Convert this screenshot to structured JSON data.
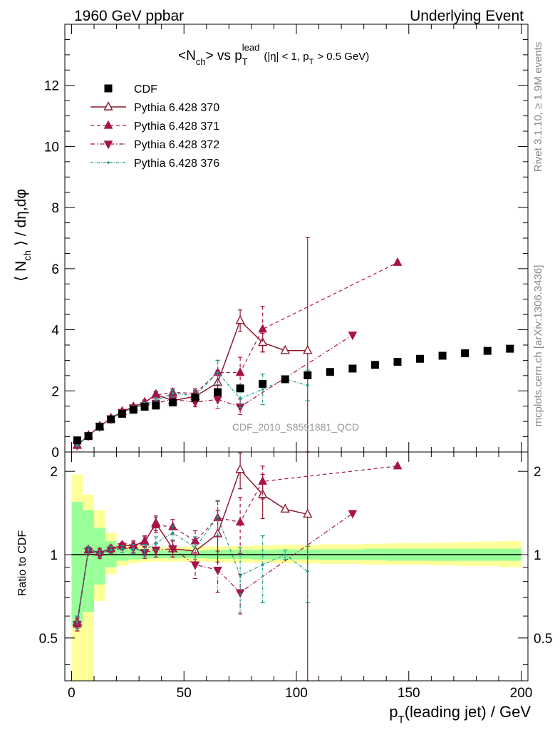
{
  "header": {
    "left": "1960 GeV ppbar",
    "right": "Underlying Event"
  },
  "side_labels": {
    "rivet": "Rivet 3.1.10, ≥ 1.9M events",
    "mcplots": "mcplots.cern.ch [arXiv:1306.3436]"
  },
  "watermark": "CDF_2010_S8591881_QCD",
  "chart_data": [
    {
      "type": "scatter",
      "panel": "main",
      "title": "<N_ch> vs p_T^lead (|η| < 1, p_T > 0.5 GeV)",
      "title_parts": {
        "a": "<N",
        "a_sub": "ch",
        "b": "> vs p",
        "b_sub": "T",
        "b_sup": "lead",
        "c": "(|η| < 1, p",
        "c_sub": "T",
        "d": "> 0.5 GeV)"
      },
      "ylabel": "⟨ N_ch ⟩ / dη,dφ",
      "ylabel_parts": {
        "a": "⟨ N",
        "sub": "ch",
        "b": " ⟩ / dη,dφ"
      },
      "xlim": [
        -3,
        203
      ],
      "ylim": [
        0,
        14
      ],
      "yticks": [
        0,
        2,
        4,
        6,
        8,
        10,
        12
      ],
      "ytick_labels": [
        "0",
        "2",
        "4",
        "6",
        "8",
        "10",
        "12"
      ],
      "legend_position": "top-left",
      "series": [
        {
          "name": "CDF",
          "color": "#000000",
          "marker": "square",
          "x": [
            2.5,
            7.5,
            12.5,
            17.5,
            22.5,
            27.5,
            32.5,
            37.5,
            45,
            55,
            65,
            75,
            85,
            95,
            105,
            115,
            125,
            135,
            145,
            155,
            165,
            175,
            185,
            195
          ],
          "y": [
            0.38,
            0.52,
            0.83,
            1.07,
            1.25,
            1.38,
            1.48,
            1.52,
            1.62,
            1.78,
            1.96,
            2.08,
            2.23,
            2.38,
            2.51,
            2.62,
            2.73,
            2.85,
            2.95,
            3.05,
            3.15,
            3.23,
            3.31,
            3.38
          ]
        },
        {
          "name": "Pythia 6.428 370",
          "color": "#8b1a2e",
          "marker": "triangle-up-open",
          "dash": "",
          "x": [
            2.5,
            7.5,
            12.5,
            17.5,
            22.5,
            27.5,
            32.5,
            37.5,
            45,
            55,
            65,
            75,
            85,
            95,
            105
          ],
          "y": [
            0.22,
            0.54,
            0.84,
            1.1,
            1.32,
            1.47,
            1.62,
            1.88,
            1.68,
            1.82,
            2.27,
            4.3,
            3.58,
            3.32,
            3.32
          ],
          "err": [
            0.04,
            0.03,
            0.04,
            0.05,
            0.05,
            0.06,
            0.08,
            0.1,
            0.1,
            0.2,
            0.4,
            0.35,
            0.3,
            0.0,
            3.7
          ]
        },
        {
          "name": "Pythia 6.428 371",
          "color": "#a8124a",
          "marker": "triangle-up",
          "dash": "5,4",
          "x": [
            2.5,
            7.5,
            12.5,
            17.5,
            22.5,
            27.5,
            32.5,
            37.5,
            45,
            55,
            65,
            75,
            85,
            145
          ],
          "y": [
            0.21,
            0.54,
            0.84,
            1.1,
            1.33,
            1.48,
            1.62,
            1.86,
            1.95,
            1.92,
            2.6,
            2.6,
            4.02,
            6.2
          ],
          "err": [
            0.04,
            0.03,
            0.04,
            0.05,
            0.05,
            0.06,
            0.08,
            0.1,
            0.12,
            0.15,
            0.4,
            0.5,
            0.75,
            0.0
          ]
        },
        {
          "name": "Pythia 6.428 372",
          "color": "#a8124a",
          "marker": "triangle-down",
          "dash": "6,3,1.5,3",
          "x": [
            2.5,
            7.5,
            12.5,
            17.5,
            22.5,
            27.5,
            32.5,
            37.5,
            45,
            55,
            65,
            75,
            125
          ],
          "y": [
            0.22,
            0.53,
            0.83,
            1.08,
            1.3,
            1.45,
            1.52,
            1.6,
            1.72,
            1.63,
            1.72,
            1.48,
            3.83
          ],
          "err": [
            0.04,
            0.03,
            0.04,
            0.05,
            0.05,
            0.06,
            0.08,
            0.1,
            0.12,
            0.15,
            0.3,
            0.25,
            0.0
          ]
        },
        {
          "name": "Pythia 6.428 376",
          "color": "#1a9a8a",
          "marker": "dot",
          "dash": "4,2,1,2",
          "x": [
            2.5,
            7.5,
            12.5,
            17.5,
            22.5,
            27.5,
            32.5,
            37.5,
            45,
            55,
            65,
            75,
            85,
            95,
            105
          ],
          "y": [
            0.22,
            0.54,
            0.84,
            1.1,
            1.3,
            1.45,
            1.55,
            1.68,
            1.92,
            1.85,
            2.6,
            1.75,
            2.05,
            2.38,
            2.18
          ],
          "err": [
            0.04,
            0.03,
            0.04,
            0.05,
            0.05,
            0.06,
            0.08,
            0.1,
            0.12,
            0.15,
            0.4,
            0.3,
            0.5,
            0.05,
            0.5
          ]
        }
      ]
    },
    {
      "type": "scatter",
      "panel": "ratio",
      "ylabel": "Ratio to CDF",
      "xlabel": "p_T(leading jet) / GeV",
      "xlabel_parts": {
        "a": "p",
        "sub": "T",
        "b": "(leading jet) / GeV"
      },
      "xlim": [
        -3,
        203
      ],
      "ylim": [
        0.35,
        2.35
      ],
      "ylog": true,
      "xticks": [
        0,
        50,
        100,
        150,
        200
      ],
      "xtick_labels": [
        "0",
        "50",
        "100",
        "150",
        "200"
      ],
      "yticks": [
        0.5,
        1,
        2
      ],
      "ytick_labels": [
        "0.5",
        "1",
        "2"
      ],
      "reference_line": 1,
      "bands": {
        "edges": [
          0,
          5,
          10,
          15,
          20,
          25,
          30,
          35,
          40,
          50,
          60,
          70,
          80,
          90,
          100,
          110,
          120,
          130,
          140,
          150,
          160,
          170,
          180,
          190,
          200
        ],
        "inner": {
          "color": "#99ff99",
          "lo": [
            0.55,
            0.62,
            0.78,
            0.9,
            0.95,
            0.96,
            0.965,
            0.97,
            0.97,
            0.97,
            0.965,
            0.965,
            0.96,
            0.96,
            0.96,
            0.955,
            0.955,
            0.955,
            0.95,
            0.95,
            0.95,
            0.95,
            0.95,
            0.95
          ],
          "hi": [
            1.55,
            1.45,
            1.25,
            1.12,
            1.06,
            1.045,
            1.04,
            1.035,
            1.035,
            1.035,
            1.04,
            1.04,
            1.04,
            1.045,
            1.045,
            1.045,
            1.045,
            1.05,
            1.05,
            1.05,
            1.05,
            1.05,
            1.05,
            1.05
          ]
        },
        "outer": {
          "color": "#ffff99",
          "lo": [
            0.35,
            0.35,
            0.68,
            0.85,
            0.91,
            0.93,
            0.94,
            0.945,
            0.945,
            0.945,
            0.94,
            0.935,
            0.935,
            0.93,
            0.93,
            0.925,
            0.925,
            0.92,
            0.92,
            0.92,
            0.915,
            0.91,
            0.91,
            0.9
          ],
          "hi": [
            1.95,
            1.65,
            1.45,
            1.2,
            1.1,
            1.08,
            1.07,
            1.065,
            1.065,
            1.07,
            1.07,
            1.075,
            1.08,
            1.085,
            1.085,
            1.09,
            1.09,
            1.095,
            1.1,
            1.1,
            1.105,
            1.11,
            1.115,
            1.12
          ]
        }
      },
      "series": [
        {
          "name": "Pythia 6.428 370",
          "color": "#8b1a2e",
          "marker": "triangle-up-open",
          "dash": "",
          "x": [
            2.5,
            7.5,
            12.5,
            17.5,
            22.5,
            27.5,
            32.5,
            37.5,
            45,
            55,
            65,
            75,
            85,
            95,
            105
          ],
          "y": [
            0.57,
            1.04,
            1.02,
            1.05,
            1.08,
            1.08,
            1.11,
            1.3,
            1.05,
            1.03,
            1.19,
            2.03,
            1.65,
            1.46,
            1.4
          ],
          "err": [
            0.03,
            0.03,
            0.03,
            0.03,
            0.03,
            0.04,
            0.05,
            0.08,
            0.07,
            0.1,
            0.25,
            0.3,
            0.3,
            0.0,
            1.2
          ]
        },
        {
          "name": "Pythia 6.428 371",
          "color": "#a8124a",
          "marker": "triangle-up",
          "dash": "5,4",
          "x": [
            2.5,
            7.5,
            12.5,
            17.5,
            22.5,
            27.5,
            32.5,
            37.5,
            45,
            55,
            65,
            75,
            85,
            145
          ],
          "y": [
            0.56,
            1.04,
            1.02,
            1.05,
            1.08,
            1.08,
            1.12,
            1.28,
            1.26,
            1.12,
            1.36,
            1.31,
            1.84,
            2.09
          ],
          "err": [
            0.03,
            0.03,
            0.03,
            0.03,
            0.03,
            0.04,
            0.05,
            0.08,
            0.08,
            0.1,
            0.2,
            0.3,
            0.25,
            0.0
          ]
        },
        {
          "name": "Pythia 6.428 372",
          "color": "#a8124a",
          "marker": "triangle-down",
          "dash": "6,3,1.5,3",
          "x": [
            2.5,
            7.5,
            12.5,
            17.5,
            22.5,
            27.5,
            32.5,
            37.5,
            45,
            55,
            65,
            75,
            125
          ],
          "y": [
            0.56,
            1.03,
            1.0,
            1.04,
            1.07,
            1.06,
            1.02,
            1.04,
            1.05,
            0.92,
            0.88,
            0.73,
            1.41
          ],
          "err": [
            0.03,
            0.03,
            0.03,
            0.03,
            0.03,
            0.04,
            0.05,
            0.06,
            0.07,
            0.1,
            0.15,
            0.12,
            0.0
          ]
        },
        {
          "name": "Pythia 6.428 376",
          "color": "#1a9a8a",
          "marker": "dot",
          "dash": "4,2,1,2",
          "x": [
            2.5,
            7.5,
            12.5,
            17.5,
            22.5,
            27.5,
            32.5,
            37.5,
            45,
            55,
            65,
            75,
            85,
            95,
            105
          ],
          "y": [
            0.57,
            1.04,
            1.01,
            1.04,
            1.05,
            1.05,
            1.04,
            1.1,
            1.2,
            1.06,
            1.37,
            0.84,
            0.92,
            1.0,
            0.87
          ],
          "err": [
            0.03,
            0.03,
            0.03,
            0.03,
            0.03,
            0.04,
            0.05,
            0.06,
            0.07,
            0.1,
            0.2,
            0.22,
            0.25,
            0.04,
            0.2
          ]
        }
      ]
    }
  ]
}
